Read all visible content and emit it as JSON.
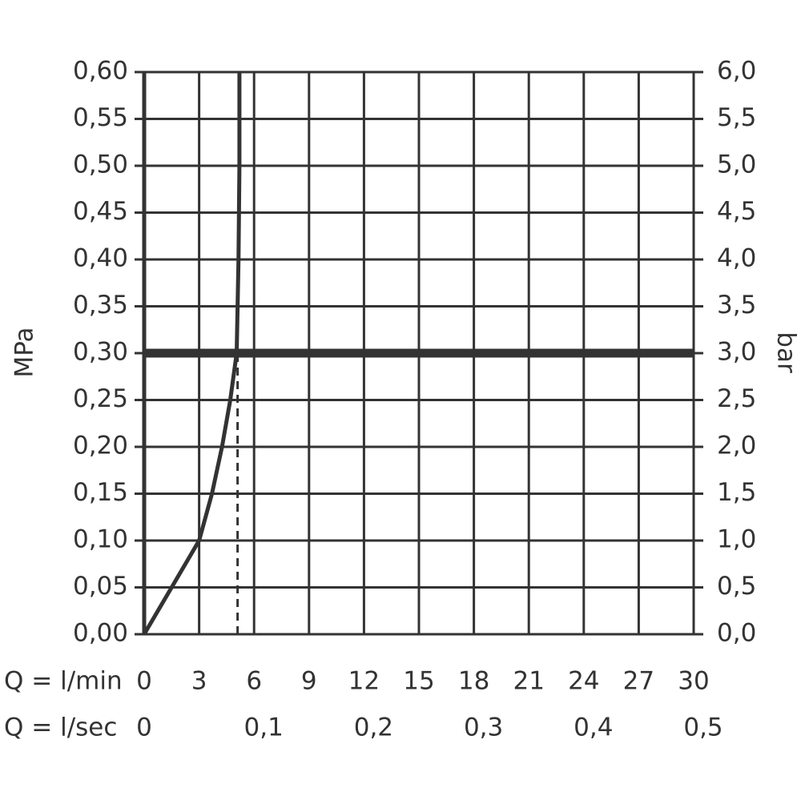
{
  "chart_data": {
    "type": "line",
    "x_label": "Q = l/min",
    "x2_label": "Q = l/sec",
    "y_label": "MPa",
    "y2_label": "bar",
    "xlim": [
      0,
      30
    ],
    "xticks": [
      0,
      3,
      6,
      9,
      12,
      15,
      18,
      21,
      24,
      27,
      30
    ],
    "x2lim": [
      0,
      0.5
    ],
    "x2ticks": [
      0,
      {
        "value": 0.1,
        "label": "0,1"
      },
      {
        "value": 0.2,
        "label": "0,2"
      },
      {
        "value": 0.3,
        "label": "0,3"
      },
      {
        "value": 0.4,
        "label": "0,4"
      },
      {
        "value": 0.5,
        "label": "0,5"
      }
    ],
    "ylim": [
      0,
      0.6
    ],
    "yticks": [
      {
        "value": 0,
        "label": "0,00"
      },
      {
        "value": 0.05,
        "label": "0,05"
      },
      {
        "value": 0.1,
        "label": "0,10"
      },
      {
        "value": 0.15,
        "label": "0,15"
      },
      {
        "value": 0.2,
        "label": "0,20"
      },
      {
        "value": 0.25,
        "label": "0,25"
      },
      {
        "value": 0.3,
        "label": "0,30"
      },
      {
        "value": 0.35,
        "label": "0,35"
      },
      {
        "value": 0.4,
        "label": "0,40"
      },
      {
        "value": 0.45,
        "label": "0,45"
      },
      {
        "value": 0.5,
        "label": "0,50"
      },
      {
        "value": 0.55,
        "label": "0,55"
      },
      {
        "value": 0.6,
        "label": "0,60"
      }
    ],
    "y2lim": [
      0,
      6
    ],
    "y2ticks": [
      {
        "value": 0,
        "label": "0,0"
      },
      {
        "value": 0.5,
        "label": "0,5"
      },
      {
        "value": 1,
        "label": "1,0"
      },
      {
        "value": 1.5,
        "label": "1,5"
      },
      {
        "value": 2,
        "label": "2,0"
      },
      {
        "value": 2.5,
        "label": "2,5"
      },
      {
        "value": 3,
        "label": "3,0"
      },
      {
        "value": 3.5,
        "label": "3,5"
      },
      {
        "value": 4,
        "label": "4,0"
      },
      {
        "value": 4.5,
        "label": "4,5"
      },
      {
        "value": 5,
        "label": "5,0"
      },
      {
        "value": 5.5,
        "label": "5,5"
      },
      {
        "value": 6,
        "label": "6,0"
      }
    ],
    "grid": true,
    "color": "#333333",
    "series": [
      {
        "x": [
          0,
          1.5,
          3,
          3.7,
          4.25,
          4.7,
          5.05,
          5.15,
          5.2,
          5.2
        ],
        "values": [
          0,
          0.05,
          0.1,
          0.15,
          0.2,
          0.25,
          0.3,
          0.4,
          0.5,
          0.6
        ],
        "color": "#333333"
      }
    ],
    "reference_line_y": 0.3,
    "dashed_line_x": 5.1
  }
}
